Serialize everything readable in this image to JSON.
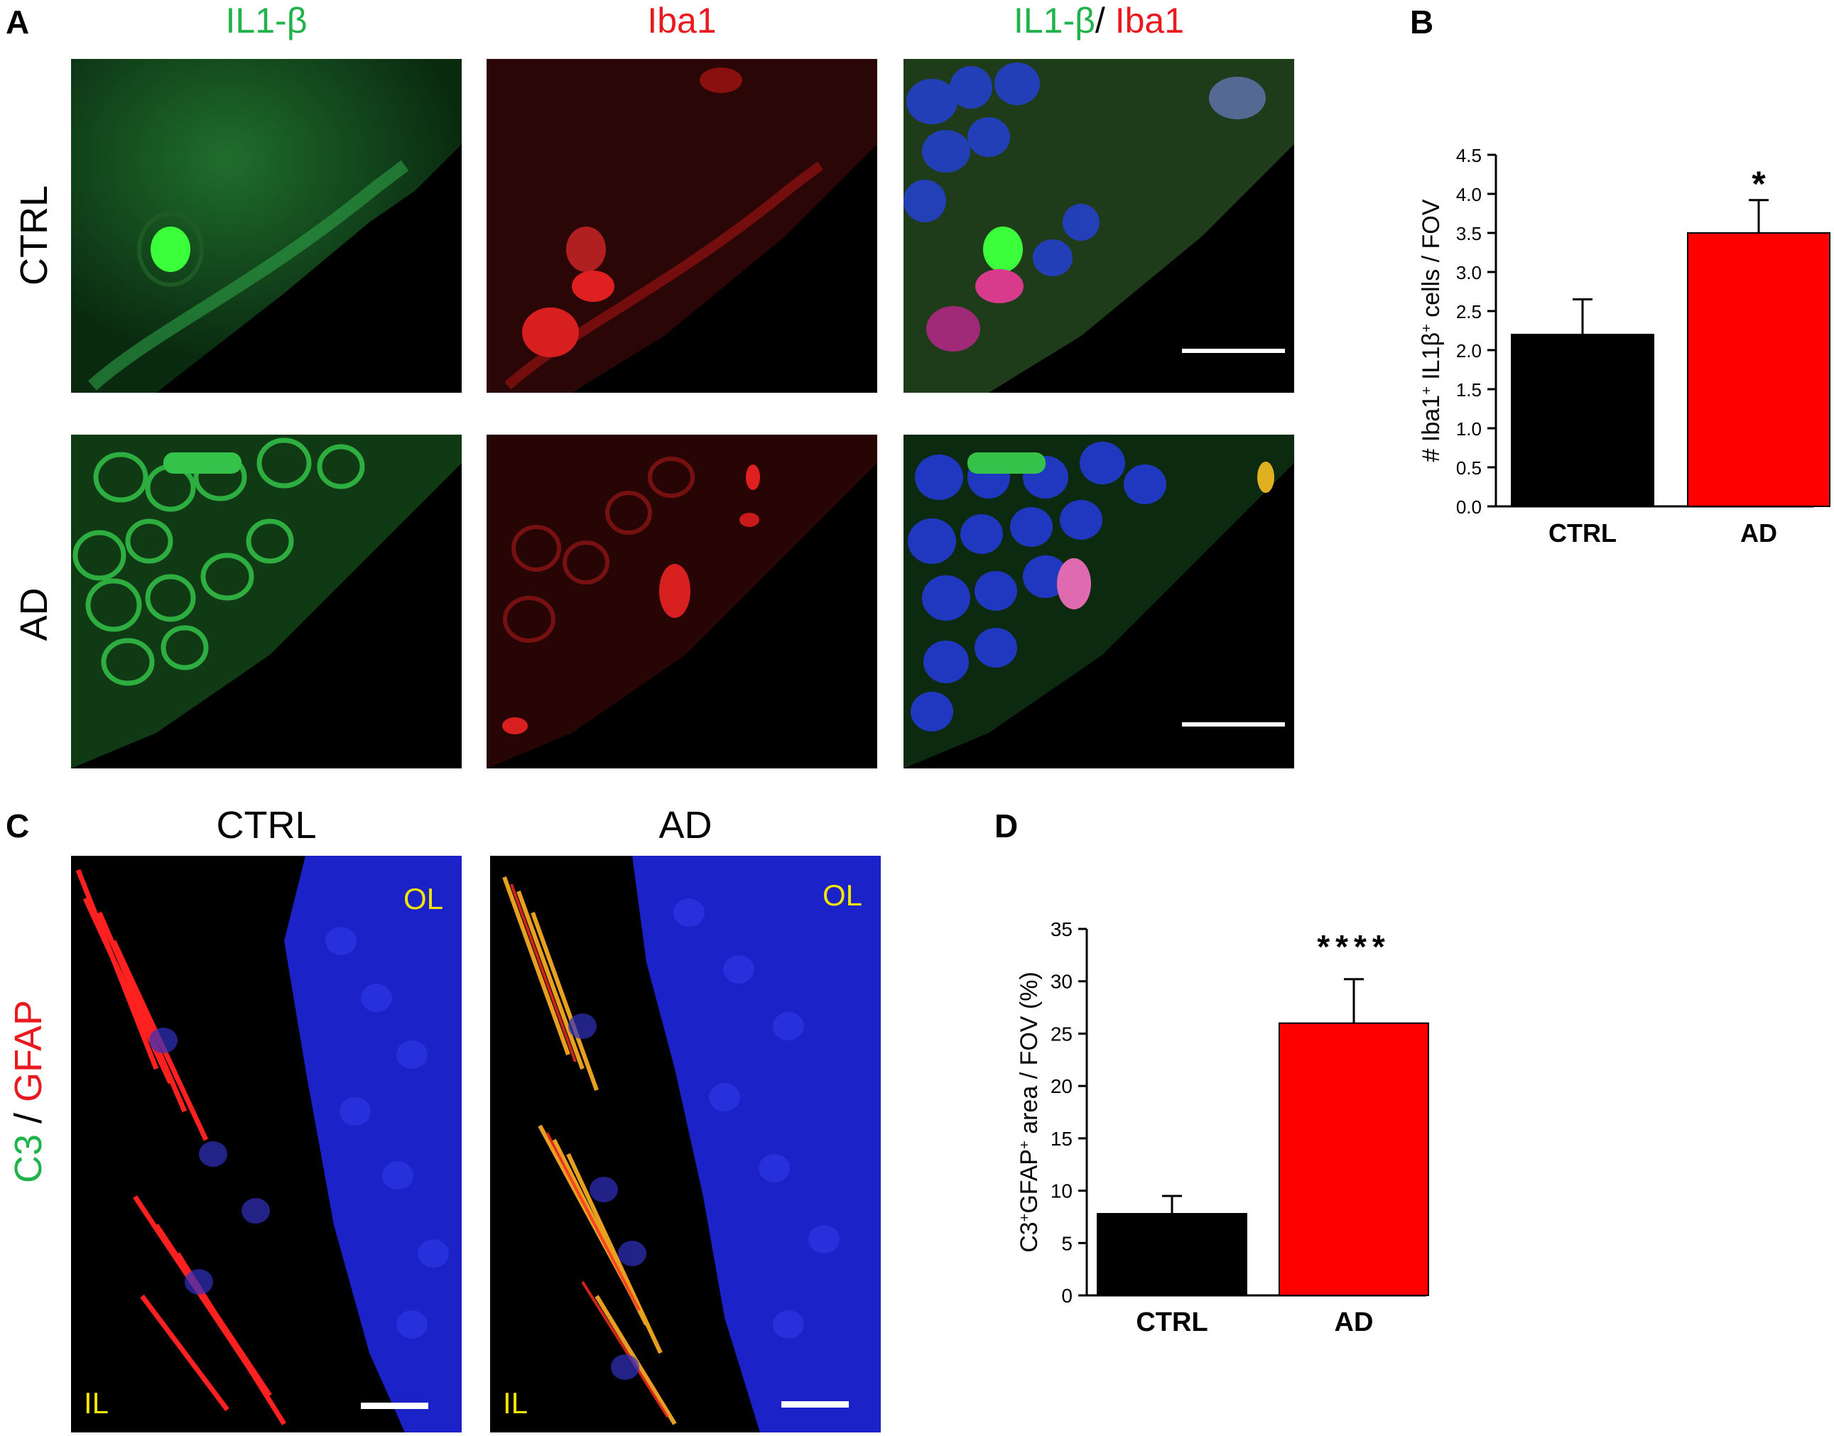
{
  "panels": {
    "A": "A",
    "B": "B",
    "C": "C",
    "D": "D"
  },
  "panelA": {
    "col_il1b": "IL1-β",
    "col_iba1": "Iba1",
    "merge_il1b": "IL1-β",
    "merge_slash": "/ ",
    "merge_iba1": "Iba1",
    "row_ctrl": "CTRL",
    "row_ad": "AD"
  },
  "panelC": {
    "col_ctrl": "CTRL",
    "col_ad": "AD",
    "ylab_c3": "C3",
    "ylab_slash": " / ",
    "ylab_gfap": "GFAP",
    "ol_left": "OL",
    "il_left": "IL",
    "ol_right": "OL",
    "il_right": "IL"
  },
  "colors": {
    "green_label": "#1fb34a",
    "red_label": "#e8191f",
    "ctrl_bar": "#000000",
    "ad_bar": "#ff0000",
    "region_label": "#f2e600"
  },
  "chart_data": [
    {
      "id": "B",
      "type": "bar",
      "categories": [
        "CTRL",
        "AD"
      ],
      "values": [
        2.2,
        3.5
      ],
      "errors": [
        0.45,
        0.42
      ],
      "colors": [
        "#000000",
        "#ff0000"
      ],
      "ylabel_parts": [
        "# Iba1",
        "+",
        " IL1β",
        "+",
        " cells / FOV"
      ],
      "ylim": [
        0,
        4.5
      ],
      "yticks": [
        "0.0",
        "0.5",
        "1.0",
        "1.5",
        "2.0",
        "2.5",
        "3.0",
        "3.5",
        "4.0",
        "4.5"
      ],
      "significance": "*"
    },
    {
      "id": "D",
      "type": "bar",
      "categories": [
        "CTRL",
        "AD"
      ],
      "values": [
        7.8,
        26.0
      ],
      "errors": [
        1.7,
        4.2
      ],
      "colors": [
        "#000000",
        "#ff0000"
      ],
      "ylabel_parts": [
        "C3",
        "+",
        "GFAP",
        "+",
        " area / FOV (%)"
      ],
      "ylim": [
        0,
        35
      ],
      "yticks": [
        "0",
        "5",
        "10",
        "15",
        "20",
        "25",
        "30",
        "35"
      ],
      "significance": "****"
    }
  ]
}
